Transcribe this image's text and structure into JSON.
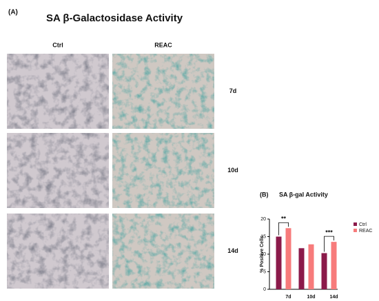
{
  "panel_a": {
    "label": "(A)",
    "title": "SA β-Galactosidase Activity",
    "columns": [
      "Ctrl",
      "REAC"
    ],
    "rows": [
      "7d",
      "10d",
      "14d"
    ]
  },
  "chart_data": {
    "type": "bar",
    "label": "(B)",
    "title": "SA β-gal Activity",
    "y_label": "% Positive Cells",
    "categories": [
      "7d",
      "10d",
      "14d"
    ],
    "series": [
      {
        "name": "Ctrl",
        "color": "#8b1a4a",
        "values": [
          15,
          11.7,
          10.3
        ]
      },
      {
        "name": "REAC",
        "color": "#f77b7b",
        "values": [
          17.4,
          12.8,
          13.5
        ]
      }
    ],
    "ylim": [
      0,
      20
    ],
    "yticks": [
      0,
      5,
      10,
      15,
      20
    ],
    "legend": "right",
    "annotations": [
      {
        "text": "**",
        "x": "7d"
      },
      {
        "text": "***",
        "x": "14d"
      }
    ]
  }
}
